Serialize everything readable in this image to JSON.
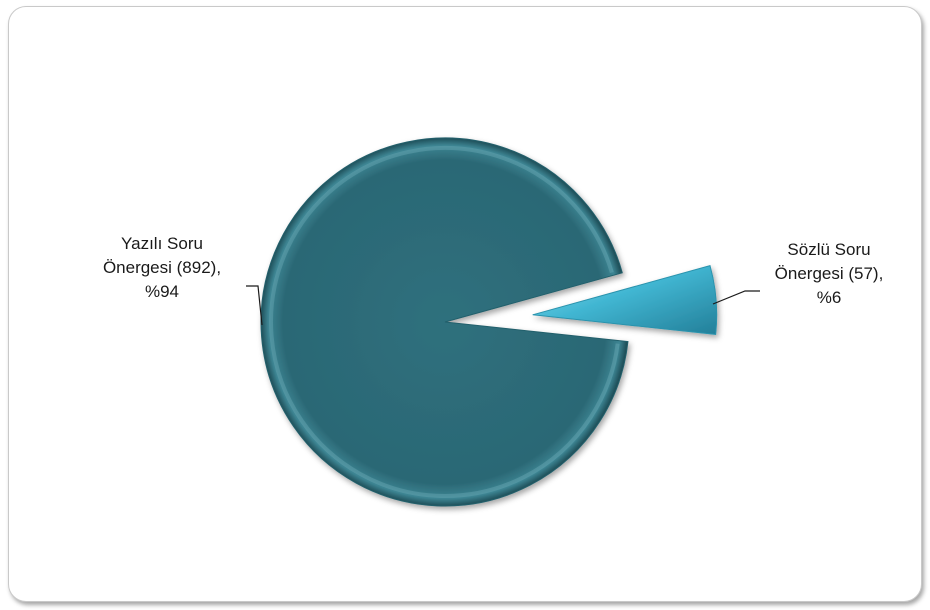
{
  "chart_data": {
    "type": "pie",
    "title": "",
    "slices": [
      {
        "name": "Yazılı Soru Önergesi",
        "value": 892,
        "percent": 94,
        "label_lines": [
          "Yazılı Soru",
          "Önergesi (892),",
          "%94"
        ],
        "color": "#2d6b78"
      },
      {
        "name": "Sözlü Soru Önergesi",
        "value": 57,
        "percent": 6,
        "label_lines": [
          "Sözlü Soru",
          "Önergesi (57),",
          "%6"
        ],
        "color": "#3fb3d0"
      }
    ],
    "exploded_slice": "Sözlü Soru Önergesi",
    "style": "3d-bevel",
    "legend": "none",
    "data_labels": "outside-with-leader-lines"
  }
}
